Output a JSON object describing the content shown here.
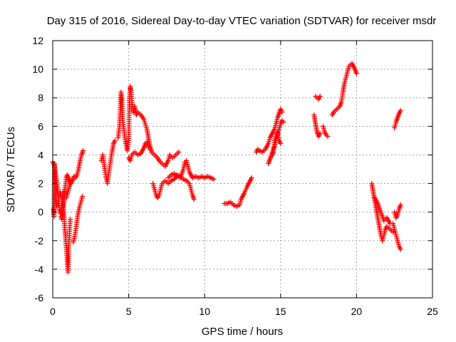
{
  "chart_data": {
    "type": "scatter",
    "title": "Day 315 of 2016, Sidereal Day-to-day VTEC variation (SDTVAR) for receiver msdr",
    "xlabel": "GPS time / hours",
    "ylabel": "SDTVAR / TECUs",
    "xlim": [
      0,
      25
    ],
    "ylim": [
      -6,
      12
    ],
    "xticks": [
      0,
      5,
      10,
      15,
      20,
      25
    ],
    "yticks": [
      -6,
      -4,
      -2,
      0,
      2,
      4,
      6,
      8,
      10,
      12
    ],
    "xtick_labels": [
      "0",
      "5",
      "10",
      "15",
      "20",
      "25"
    ],
    "ytick_labels": [
      "-6",
      "-4",
      "-2",
      "0",
      "2",
      "4",
      "6",
      "8",
      "10",
      "12"
    ],
    "grid": true,
    "legend": "none",
    "marker": "+",
    "color": "#ff0000",
    "series": [
      {
        "segments": [
          [
            [
              0.0,
              3.5
            ],
            [
              0.1,
              3.3
            ],
            [
              0.2,
              2.6
            ],
            [
              0.3,
              1.8
            ],
            [
              0.35,
              1.2
            ],
            [
              0.4,
              0.6
            ],
            [
              0.45,
              0.2
            ],
            [
              0.5,
              -0.1
            ],
            [
              0.55,
              0.1
            ],
            [
              0.6,
              0.6
            ],
            [
              0.7,
              1.4
            ]
          ],
          [
            [
              0.05,
              0.2
            ],
            [
              0.08,
              -0.3
            ],
            [
              0.12,
              3.4
            ],
            [
              0.15,
              3.0
            ],
            [
              0.2,
              1.5
            ],
            [
              0.25,
              0.4
            ]
          ],
          [
            [
              0.5,
              1.4
            ],
            [
              0.6,
              1.0
            ],
            [
              0.7,
              0.2
            ],
            [
              0.75,
              -0.4
            ],
            [
              0.8,
              -1.2
            ],
            [
              0.85,
              -1.8
            ],
            [
              0.9,
              -2.6
            ],
            [
              0.95,
              -3.3
            ],
            [
              1.0,
              -4.2
            ],
            [
              1.02,
              -3.8
            ],
            [
              1.05,
              -2.8
            ],
            [
              1.1,
              -1.5
            ],
            [
              1.15,
              -0.5
            ]
          ],
          [
            [
              0.55,
              -0.3
            ],
            [
              0.6,
              -0.5
            ],
            [
              0.65,
              -0.2
            ],
            [
              0.7,
              0.3
            ],
            [
              0.75,
              0.9
            ],
            [
              0.8,
              1.6
            ],
            [
              0.85,
              2.0
            ],
            [
              0.9,
              2.4
            ],
            [
              0.95,
              2.6
            ],
            [
              1.0,
              2.5
            ],
            [
              1.1,
              2.2
            ],
            [
              1.2,
              2.0
            ],
            [
              1.3,
              2.2
            ],
            [
              1.4,
              2.5
            ],
            [
              1.5,
              2.4
            ],
            [
              1.6,
              2.6
            ],
            [
              1.7,
              3.0
            ],
            [
              1.8,
              3.6
            ],
            [
              1.9,
              4.0
            ],
            [
              2.0,
              4.3
            ]
          ],
          [
            [
              0.9,
              1.0
            ],
            [
              1.0,
              1.4
            ],
            [
              1.1,
              1.8
            ],
            [
              1.2,
              2.2
            ]
          ],
          [
            [
              1.35,
              -2.1
            ],
            [
              1.45,
              -1.7
            ],
            [
              1.55,
              -1.0
            ],
            [
              1.65,
              -0.2
            ],
            [
              1.75,
              0.3
            ],
            [
              1.85,
              0.7
            ],
            [
              1.95,
              1.1
            ]
          ],
          [
            [
              3.2,
              3.6
            ],
            [
              3.3,
              4.0
            ],
            [
              3.4,
              3.2
            ],
            [
              3.5,
              2.5
            ],
            [
              3.6,
              2.0
            ],
            [
              3.7,
              2.8
            ],
            [
              3.8,
              3.5
            ],
            [
              3.9,
              4.2
            ],
            [
              4.0,
              4.8
            ],
            [
              4.1,
              5.0
            ]
          ],
          [
            [
              4.3,
              5.2
            ],
            [
              4.4,
              6.0
            ],
            [
              4.45,
              7.2
            ],
            [
              4.5,
              8.4
            ],
            [
              4.55,
              7.8
            ],
            [
              4.6,
              6.4
            ],
            [
              4.7,
              5.6
            ],
            [
              4.8,
              4.8
            ],
            [
              4.9,
              4.4
            ]
          ],
          [
            [
              4.9,
              4.3
            ],
            [
              5.0,
              5.0
            ],
            [
              5.05,
              7.8
            ],
            [
              5.1,
              8.8
            ],
            [
              5.15,
              8.5
            ],
            [
              5.2,
              7.8
            ],
            [
              5.3,
              7.0
            ],
            [
              5.4,
              7.4
            ],
            [
              5.5,
              6.8
            ],
            [
              5.6,
              7.0
            ],
            [
              5.8,
              6.8
            ],
            [
              6.0,
              6.5
            ],
            [
              6.2,
              5.8
            ],
            [
              6.3,
              5.2
            ],
            [
              6.4,
              4.6
            ],
            [
              6.5,
              4.3
            ]
          ],
          [
            [
              5.0,
              3.8
            ],
            [
              5.1,
              3.6
            ],
            [
              5.2,
              4.0
            ],
            [
              5.4,
              4.2
            ],
            [
              5.6,
              4.0
            ],
            [
              5.8,
              4.1
            ],
            [
              6.0,
              4.5
            ],
            [
              6.1,
              4.8
            ],
            [
              6.2,
              4.9
            ],
            [
              6.3,
              4.5
            ]
          ],
          [
            [
              6.5,
              4.2
            ],
            [
              6.7,
              4.0
            ],
            [
              6.9,
              3.8
            ],
            [
              7.0,
              3.6
            ],
            [
              7.2,
              3.4
            ],
            [
              7.4,
              3.2
            ],
            [
              7.6,
              3.6
            ],
            [
              7.7,
              4.0
            ],
            [
              7.9,
              3.8
            ],
            [
              8.1,
              4.0
            ],
            [
              8.3,
              4.2
            ]
          ],
          [
            [
              6.6,
              2.0
            ],
            [
              6.7,
              1.6
            ],
            [
              6.8,
              1.2
            ],
            [
              6.9,
              1.0
            ],
            [
              7.0,
              1.2
            ],
            [
              7.1,
              1.6
            ],
            [
              7.2,
              2.0
            ],
            [
              7.4,
              2.2
            ],
            [
              7.6,
              2.0
            ],
            [
              7.8,
              2.2
            ],
            [
              8.0,
              2.3
            ],
            [
              8.2,
              2.6
            ],
            [
              8.4,
              2.5
            ],
            [
              8.6,
              2.3
            ],
            [
              8.8,
              2.2
            ],
            [
              9.0,
              2.0
            ],
            [
              9.1,
              1.6
            ],
            [
              9.2,
              1.2
            ],
            [
              9.3,
              0.9
            ]
          ],
          [
            [
              7.6,
              2.4
            ],
            [
              7.8,
              2.6
            ],
            [
              8.0,
              2.7
            ],
            [
              8.2,
              2.5
            ],
            [
              8.4,
              2.4
            ],
            [
              8.6,
              3.0
            ],
            [
              8.7,
              3.5
            ],
            [
              8.8,
              3.6
            ],
            [
              8.9,
              3.2
            ],
            [
              9.0,
              2.8
            ],
            [
              9.2,
              2.4
            ],
            [
              9.4,
              2.5
            ],
            [
              9.6,
              2.4
            ],
            [
              9.8,
              2.5
            ],
            [
              10.0,
              2.4
            ],
            [
              10.2,
              2.5
            ],
            [
              10.4,
              2.4
            ],
            [
              10.6,
              2.3
            ]
          ],
          [
            [
              11.3,
              0.6
            ],
            [
              11.5,
              0.6
            ],
            [
              11.7,
              0.7
            ],
            [
              11.9,
              0.5
            ],
            [
              12.1,
              0.4
            ],
            [
              12.3,
              0.5
            ],
            [
              12.4,
              0.9
            ],
            [
              12.6,
              1.3
            ],
            [
              12.8,
              1.8
            ],
            [
              13.0,
              2.2
            ],
            [
              13.1,
              2.4
            ]
          ],
          [
            [
              13.4,
              4.2
            ],
            [
              13.5,
              4.4
            ],
            [
              13.6,
              4.3
            ],
            [
              13.8,
              4.2
            ],
            [
              14.0,
              4.4
            ],
            [
              14.2,
              4.8
            ],
            [
              14.3,
              5.2
            ],
            [
              14.4,
              5.4
            ],
            [
              14.5,
              5.6
            ],
            [
              14.6,
              5.8
            ],
            [
              14.7,
              6.2
            ],
            [
              14.8,
              6.6
            ],
            [
              14.9,
              6.9
            ],
            [
              15.0,
              7.2
            ],
            [
              15.1,
              7.0
            ]
          ],
          [
            [
              14.2,
              3.4
            ],
            [
              14.3,
              3.7
            ],
            [
              14.4,
              4.0
            ],
            [
              14.5,
              4.3
            ],
            [
              14.6,
              4.6
            ],
            [
              14.7,
              5.0
            ],
            [
              14.8,
              5.4
            ],
            [
              14.9,
              5.8
            ],
            [
              15.0,
              6.2
            ],
            [
              15.1,
              6.4
            ],
            [
              15.2,
              6.3
            ]
          ],
          [
            [
              14.5,
              4.0
            ],
            [
              14.6,
              5.0
            ],
            [
              14.7,
              5.4
            ],
            [
              14.8,
              5.6
            ],
            [
              14.9,
              5.0
            ],
            [
              15.0,
              4.8
            ]
          ],
          [
            [
              17.2,
              6.8
            ],
            [
              17.3,
              6.2
            ],
            [
              17.4,
              5.6
            ],
            [
              17.5,
              5.3
            ],
            [
              17.6,
              5.5
            ]
          ],
          [
            [
              17.3,
              8.1
            ],
            [
              17.4,
              8.0
            ],
            [
              17.5,
              7.9
            ],
            [
              17.6,
              8.1
            ]
          ],
          [
            [
              17.8,
              6.0
            ],
            [
              17.9,
              5.6
            ],
            [
              18.0,
              5.4
            ],
            [
              18.1,
              5.3
            ]
          ],
          [
            [
              18.4,
              6.8
            ],
            [
              18.5,
              7.0
            ],
            [
              18.7,
              7.2
            ],
            [
              18.9,
              7.4
            ],
            [
              19.0,
              7.7
            ],
            [
              19.1,
              8.4
            ],
            [
              19.2,
              9.0
            ],
            [
              19.3,
              9.4
            ],
            [
              19.4,
              9.8
            ],
            [
              19.5,
              10.2
            ],
            [
              19.6,
              10.3
            ],
            [
              19.7,
              10.4
            ],
            [
              19.8,
              10.2
            ],
            [
              19.9,
              10.0
            ],
            [
              20.0,
              9.7
            ]
          ],
          [
            [
              21.0,
              2.0
            ],
            [
              21.1,
              1.4
            ],
            [
              21.2,
              0.8
            ],
            [
              21.3,
              0.2
            ],
            [
              21.4,
              -0.4
            ],
            [
              21.5,
              -1.0
            ],
            [
              21.6,
              -1.6
            ],
            [
              21.7,
              -2.0
            ],
            [
              21.8,
              -1.6
            ],
            [
              21.9,
              -1.2
            ],
            [
              22.0,
              -1.0
            ],
            [
              22.2,
              -1.2
            ],
            [
              22.4,
              -1.4
            ]
          ],
          [
            [
              21.2,
              1.0
            ],
            [
              21.4,
              0.6
            ],
            [
              21.6,
              0.0
            ],
            [
              21.8,
              -0.6
            ],
            [
              22.0,
              -0.4
            ],
            [
              22.1,
              -0.6
            ],
            [
              22.2,
              -0.8
            ]
          ],
          [
            [
              22.4,
              -0.8
            ],
            [
              22.5,
              -1.2
            ],
            [
              22.6,
              -1.6
            ],
            [
              22.7,
              -2.0
            ],
            [
              22.8,
              -2.4
            ],
            [
              22.9,
              -2.6
            ]
          ],
          [
            [
              22.5,
              0.0
            ],
            [
              22.6,
              -0.4
            ],
            [
              22.7,
              -0.2
            ],
            [
              22.8,
              0.2
            ],
            [
              22.9,
              0.5
            ]
          ],
          [
            [
              22.5,
              5.9
            ],
            [
              22.6,
              6.3
            ],
            [
              22.7,
              6.6
            ],
            [
              22.8,
              6.9
            ],
            [
              22.9,
              7.1
            ]
          ]
        ]
      }
    ]
  }
}
